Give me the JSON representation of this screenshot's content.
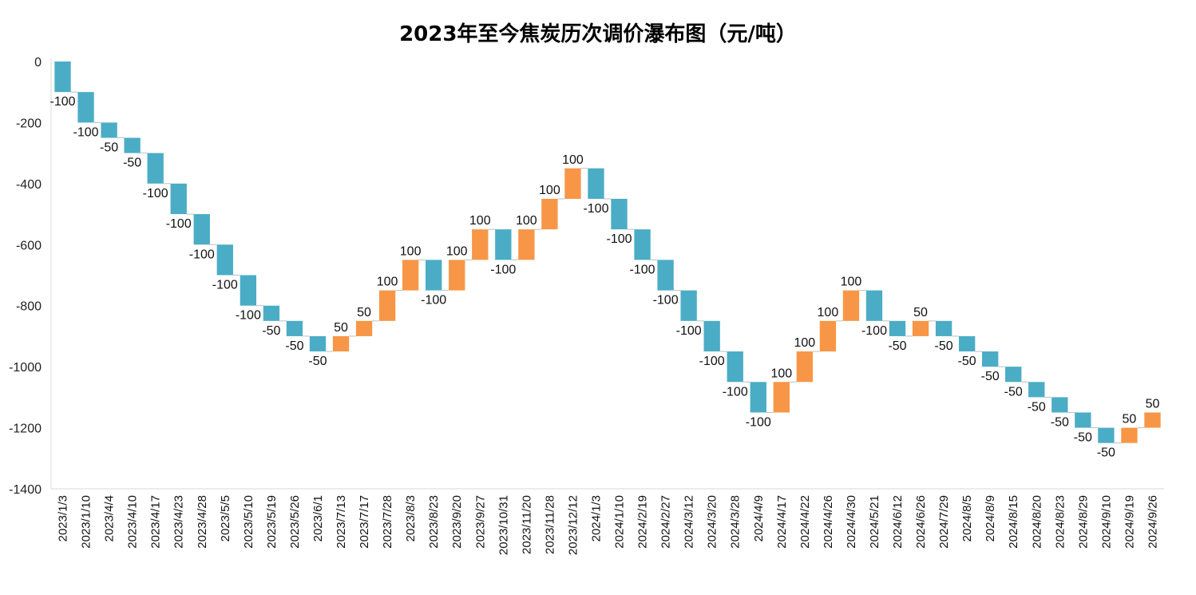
{
  "chart_data": {
    "type": "waterfall",
    "title": "2023年至今焦炭历次调价瀑布图（元/吨）",
    "xlabel": "",
    "ylabel": "",
    "ylim": [
      -1400,
      0
    ],
    "yticks": [
      0,
      -200,
      -400,
      -600,
      -800,
      -1000,
      -1200,
      -1400
    ],
    "grid": false,
    "colors": {
      "decrease": "#4BACC6",
      "increase": "#F79646",
      "connector": "#BFBFBF",
      "axis": "#D9D9D9"
    },
    "categories": [
      "2023/1/3",
      "2023/1/10",
      "2023/4/4",
      "2023/4/10",
      "2023/4/17",
      "2023/4/23",
      "2023/4/28",
      "2023/5/5",
      "2023/5/10",
      "2023/5/19",
      "2023/5/26",
      "2023/6/1",
      "2023/7/13",
      "2023/7/17",
      "2023/7/28",
      "2023/8/3",
      "2023/8/23",
      "2023/9/20",
      "2023/9/27",
      "2023/10/31",
      "2023/11/20",
      "2023/11/28",
      "2023/12/12",
      "2024/1/3",
      "2024/1/10",
      "2024/2/19",
      "2024/2/27",
      "2024/3/12",
      "2024/3/20",
      "2024/3/28",
      "2024/4/9",
      "2024/4/17",
      "2024/4/22",
      "2024/4/26",
      "2024/4/30",
      "2024/5/21",
      "2024/6/12",
      "2024/6/26",
      "2024/7/29",
      "2024/8/5",
      "2024/8/9",
      "2024/8/15",
      "2024/8/20",
      "2024/8/23",
      "2024/8/29",
      "2024/9/10",
      "2024/9/19",
      "2024/9/26"
    ],
    "values": [
      -100,
      -100,
      -50,
      -50,
      -100,
      -100,
      -100,
      -100,
      -100,
      -50,
      -50,
      -50,
      50,
      50,
      100,
      100,
      -100,
      100,
      100,
      -100,
      100,
      100,
      100,
      -100,
      -100,
      -100,
      -100,
      -100,
      -100,
      -100,
      -100,
      100,
      100,
      100,
      100,
      -100,
      -50,
      50,
      -50,
      -50,
      -50,
      -50,
      -50,
      -50,
      -50,
      -50,
      50,
      50
    ]
  }
}
